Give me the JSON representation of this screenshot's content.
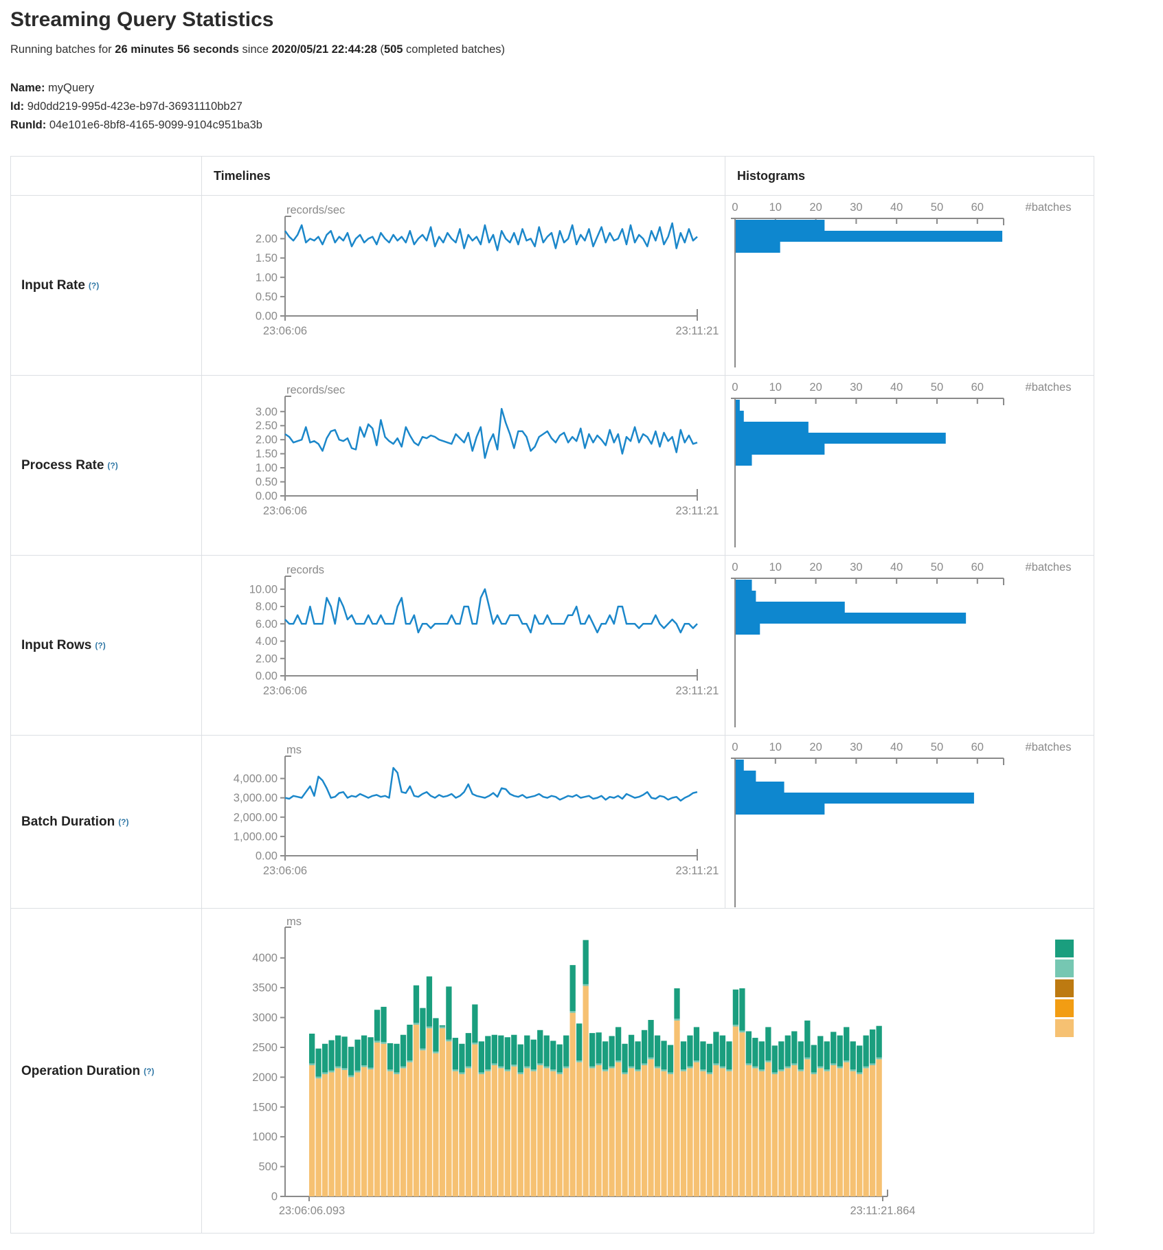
{
  "page": {
    "title": "Streaming Query Statistics",
    "running_line": {
      "prefix": "Running batches for ",
      "duration": "26 minutes 56 seconds",
      "since": " since ",
      "timestamp": "2020/05/21 22:44:28",
      "open_paren": " (",
      "batch_count": "505",
      "suffix": " completed batches)"
    },
    "meta": {
      "name_label": "Name:",
      "name": " myQuery",
      "id_label": "Id:",
      "id": " 9d0dd219-995d-423e-b97d-36931110bb27",
      "runid_label": "RunId:",
      "runid": " 04e101e6-8bf8-4165-9099-9104c951ba3b"
    }
  },
  "table": {
    "col_headers": {
      "timelines": "Timelines",
      "histograms": "Histograms"
    },
    "row_labels": [
      {
        "label": "Input Rate",
        "help": "(?)"
      },
      {
        "label": "Process Rate",
        "help": "(?)"
      },
      {
        "label": "Input Rows",
        "help": "(?)"
      },
      {
        "label": "Batch Duration",
        "help": "(?)"
      },
      {
        "label": "Operation Duration",
        "help": "(?)"
      }
    ]
  },
  "colors": {
    "line": "#1b87ca",
    "bar": "#0e87cf",
    "axis": "#8a8a8a",
    "stack_tan": "#f6c172",
    "stack_lightteal": "#76c7b2",
    "stack_teal": "#1a9e7e",
    "legend": [
      "#1a9e7e",
      "#76c7b2",
      "#bd7a11",
      "#f29d13",
      "#f6c172"
    ]
  },
  "chart_data": [
    {
      "id": "input-rate-timeline",
      "type": "line",
      "title": "records/sec",
      "x_start_label": "23:06:06",
      "x_end_label": "23:11:21",
      "ylim": [
        0,
        2.4
      ],
      "ytick_values": [
        0,
        0.5,
        1,
        1.5,
        2
      ],
      "ytick_labels": [
        "0.00",
        "0.50",
        "1.00",
        "1.50",
        "2.00"
      ],
      "values": [
        2.2,
        2.05,
        1.95,
        2.1,
        2.35,
        1.9,
        2.0,
        1.95,
        2.05,
        1.85,
        2.1,
        2.2,
        1.9,
        2.05,
        1.95,
        2.15,
        1.8,
        2.0,
        2.1,
        1.9,
        2.0,
        2.05,
        1.85,
        2.15,
        2.0,
        1.9,
        2.1,
        1.95,
        2.05,
        1.9,
        2.2,
        1.85,
        2.0,
        2.1,
        1.95,
        2.3,
        1.8,
        2.05,
        1.9,
        2.15,
        2.0,
        1.9,
        2.25,
        1.75,
        2.1,
        1.95,
        2.05,
        1.85,
        2.35,
        1.9,
        2.1,
        1.7,
        2.2,
        2.0,
        1.9,
        2.15,
        1.85,
        2.25,
        1.95,
        2.0,
        1.8,
        2.3,
        1.9,
        2.05,
        2.15,
        1.75,
        2.2,
        1.9,
        2.0,
        2.35,
        1.85,
        2.1,
        1.95,
        2.25,
        1.8,
        2.05,
        2.3,
        1.9,
        2.15,
        1.95,
        2.0,
        2.25,
        1.85,
        2.35,
        1.9,
        2.1,
        2.0,
        1.8,
        2.2,
        1.95,
        2.3,
        1.85,
        2.05,
        2.4,
        1.75,
        2.15,
        1.9,
        2.25,
        1.95,
        2.05
      ]
    },
    {
      "id": "input-rate-histogram",
      "type": "bar",
      "orientation": "horizontal",
      "unit_label": "#batches",
      "xlim": [
        0,
        66.5
      ],
      "xtick_values": [
        0,
        10,
        20,
        30,
        40,
        50,
        60
      ],
      "xtick_labels": [
        "0",
        "10",
        "20",
        "30",
        "40",
        "50",
        "60"
      ],
      "values": [
        22,
        66,
        11
      ]
    },
    {
      "id": "process-rate-timeline",
      "type": "line",
      "title": "records/sec",
      "x_start_label": "23:06:06",
      "x_end_label": "23:11:21",
      "ylim": [
        0,
        3.3
      ],
      "ytick_values": [
        0,
        0.5,
        1,
        1.5,
        2,
        2.5,
        3
      ],
      "ytick_labels": [
        "0.00",
        "0.50",
        "1.00",
        "1.50",
        "2.00",
        "2.50",
        "3.00"
      ],
      "values": [
        2.2,
        2.1,
        1.9,
        1.95,
        2.0,
        2.45,
        1.9,
        1.95,
        1.85,
        1.6,
        2.05,
        2.3,
        2.35,
        2.0,
        1.95,
        2.05,
        1.7,
        1.65,
        2.45,
        2.1,
        2.55,
        2.4,
        1.8,
        2.7,
        2.1,
        1.95,
        1.85,
        2.05,
        1.75,
        2.45,
        2.15,
        1.9,
        1.8,
        2.1,
        2.05,
        2.15,
        2.1,
        2.0,
        1.95,
        1.9,
        1.85,
        2.2,
        2.05,
        1.9,
        2.25,
        1.6,
        2.1,
        2.45,
        1.35,
        1.9,
        2.2,
        1.65,
        3.1,
        2.6,
        2.2,
        1.7,
        2.3,
        2.3,
        2.1,
        1.6,
        1.75,
        2.1,
        2.2,
        2.3,
        2.05,
        1.9,
        2.15,
        2.25,
        1.9,
        2.1,
        1.95,
        2.4,
        1.7,
        2.2,
        1.9,
        2.15,
        2.0,
        1.8,
        2.35,
        1.9,
        2.2,
        1.5,
        2.1,
        1.95,
        2.45,
        1.9,
        2.2,
        2.1,
        1.85,
        2.3,
        1.75,
        2.25,
        1.95,
        2.1,
        1.55,
        2.35,
        1.9,
        2.15,
        1.85,
        1.9
      ]
    },
    {
      "id": "process-rate-histogram",
      "type": "bar",
      "orientation": "horizontal",
      "unit_label": "#batches",
      "xlim": [
        0,
        66.5
      ],
      "xtick_values": [
        0,
        10,
        20,
        30,
        40,
        50,
        60
      ],
      "xtick_labels": [
        "0",
        "10",
        "20",
        "30",
        "40",
        "50",
        "60"
      ],
      "values": [
        1,
        2,
        18,
        52,
        22,
        4
      ]
    },
    {
      "id": "input-rows-timeline",
      "type": "line",
      "title": "records",
      "x_start_label": "23:06:06",
      "x_end_label": "23:11:21",
      "ylim": [
        0,
        10.7
      ],
      "ytick_values": [
        0,
        2,
        4,
        6,
        8,
        10
      ],
      "ytick_labels": [
        "0.00",
        "2.00",
        "4.00",
        "6.00",
        "8.00",
        "10.00"
      ],
      "values": [
        6.5,
        6,
        6,
        7,
        6,
        6,
        8,
        6,
        6,
        6,
        9,
        8,
        6,
        9,
        8,
        6.5,
        7,
        6,
        6,
        6,
        7,
        6,
        6,
        7,
        6,
        6,
        6,
        8,
        9,
        6,
        6,
        7,
        5,
        6,
        6,
        5.5,
        6,
        6,
        6,
        6,
        7,
        6,
        6,
        8,
        8,
        6,
        6,
        9,
        10,
        8,
        6,
        7,
        6,
        6,
        7,
        7,
        7,
        6,
        6,
        5,
        7,
        6,
        6,
        7,
        6,
        6,
        6,
        6,
        7,
        7,
        8,
        6,
        6,
        7,
        6,
        5,
        6,
        6,
        7,
        6,
        8,
        8,
        6,
        6,
        6,
        5.5,
        6,
        6,
        6,
        7,
        6,
        5.5,
        6,
        6.5,
        6,
        5,
        6,
        6,
        5.5,
        6
      ]
    },
    {
      "id": "input-rows-histogram",
      "type": "bar",
      "orientation": "horizontal",
      "unit_label": "#batches",
      "xlim": [
        0,
        66.5
      ],
      "xtick_values": [
        0,
        10,
        20,
        30,
        40,
        50,
        60
      ],
      "xtick_labels": [
        "0",
        "10",
        "20",
        "30",
        "40",
        "50",
        "60"
      ],
      "values": [
        4,
        5,
        27,
        57,
        6
      ]
    },
    {
      "id": "batch-duration-timeline",
      "type": "line",
      "title": "ms",
      "x_start_label": "23:06:06",
      "x_end_label": "23:11:21",
      "ylim": [
        0,
        4800
      ],
      "ytick_values": [
        0,
        1000,
        2000,
        3000,
        4000
      ],
      "ytick_labels": [
        "0.00",
        "1,000.00",
        "2,000.00",
        "3,000.00",
        "4,000.00"
      ],
      "values": [
        3000,
        2950,
        3100,
        3050,
        3000,
        3300,
        3600,
        3100,
        4100,
        3900,
        3500,
        3000,
        3050,
        3250,
        3300,
        3000,
        3100,
        3050,
        3200,
        3100,
        3000,
        3100,
        3150,
        3050,
        3100,
        3000,
        4550,
        4300,
        3300,
        3250,
        3600,
        3100,
        3050,
        3200,
        3300,
        3100,
        3000,
        3150,
        3050,
        3100,
        3200,
        3000,
        3100,
        3300,
        3700,
        3200,
        3100,
        3050,
        3000,
        3100,
        3250,
        3050,
        3500,
        3450,
        3200,
        3100,
        3050,
        3150,
        3000,
        3050,
        3100,
        3200,
        3050,
        3000,
        3100,
        3050,
        2900,
        3000,
        3100,
        3050,
        3150,
        3000,
        3050,
        3100,
        2950,
        3000,
        3100,
        2900,
        3050,
        3000,
        3100,
        2950,
        3200,
        3100,
        3000,
        3050,
        3150,
        3300,
        3000,
        2950,
        3100,
        3050,
        2900,
        3000,
        3050,
        2850,
        3000,
        3100,
        3250,
        3300
      ]
    },
    {
      "id": "batch-duration-histogram",
      "type": "bar",
      "orientation": "horizontal",
      "unit_label": "#batches",
      "xlim": [
        0,
        66.5
      ],
      "xtick_values": [
        0,
        10,
        20,
        30,
        40,
        50,
        60
      ],
      "xtick_labels": [
        "0",
        "10",
        "20",
        "30",
        "40",
        "50",
        "60"
      ],
      "values": [
        2,
        5,
        12,
        59,
        22
      ]
    },
    {
      "id": "operation-duration",
      "type": "bar",
      "stacked": true,
      "title": "ms",
      "x_start_label": "23:06:06.093",
      "x_end_label": "23:11:21.864",
      "ylim": [
        0,
        4400
      ],
      "ytick_values": [
        0,
        500,
        1000,
        1500,
        2000,
        2500,
        3000,
        3500,
        4000
      ],
      "ytick_labels": [
        "0",
        "500",
        "1000",
        "1500",
        "2000",
        "2500",
        "3000",
        "3500",
        "4000"
      ],
      "series": [
        {
          "name": "bottom-segment",
          "color_key": "stack_tan",
          "values": [
            2200,
            1980,
            2050,
            2080,
            2150,
            2120,
            2000,
            2080,
            2170,
            2130,
            2580,
            2560,
            2100,
            2050,
            2150,
            2250,
            2880,
            2450,
            2820,
            2400,
            2820,
            2600,
            2100,
            2050,
            2150,
            2550,
            2050,
            2100,
            2200,
            2150,
            2100,
            2180,
            2050,
            2150,
            2100,
            2200,
            2150,
            2100,
            2050,
            2150,
            3080,
            2250,
            3530,
            2150,
            2200,
            2100,
            2150,
            2250,
            2050,
            2150,
            2100,
            2200,
            2300,
            2150,
            2100,
            2050,
            2950,
            2100,
            2150,
            2250,
            2100,
            2050,
            2200,
            2150,
            2100,
            2850,
            2750,
            2200,
            2150,
            2100,
            2250,
            2050,
            2100,
            2150,
            2200,
            2100,
            2300,
            2050,
            2150,
            2100,
            2200,
            2150,
            2250,
            2100,
            2050,
            2150,
            2200,
            2300
          ]
        },
        {
          "name": "middle-segment",
          "color_key": "stack_lightteal",
          "constant_value": 30
        },
        {
          "name": "top-segment",
          "color_key": "stack_teal",
          "values": [
            500,
            470,
            480,
            510,
            520,
            530,
            480,
            520,
            500,
            510,
            520,
            590,
            440,
            480,
            530,
            600,
            630,
            680,
            840,
            560,
            20,
            890,
            530,
            480,
            560,
            640,
            520,
            560,
            480,
            520,
            540,
            500,
            470,
            520,
            500,
            560,
            520,
            480,
            470,
            520,
            770,
            620,
            740,
            560,
            520,
            470,
            510,
            560,
            480,
            530,
            470,
            560,
            630,
            520,
            480,
            460,
            510,
            470,
            520,
            560,
            470,
            480,
            530,
            520,
            470,
            590,
            710,
            540,
            480,
            470,
            560,
            450,
            470,
            520,
            540,
            470,
            620,
            460,
            510,
            470,
            530,
            520,
            560,
            470,
            450,
            520,
            570,
            530
          ]
        }
      ],
      "legend_swatch_colors": [
        "#1a9e7e",
        "#76c7b2",
        "#bd7a11",
        "#f29d13",
        "#f6c172"
      ]
    }
  ]
}
